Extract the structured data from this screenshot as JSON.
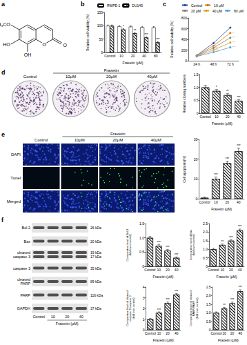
{
  "panel_letters": [
    "a",
    "b",
    "c",
    "d",
    "e",
    "f"
  ],
  "panels": {
    "a": {
      "methoxy": "H₃CO",
      "hydroxy7": "HO",
      "hydroxy8": "OH",
      "ring_oxygen": "O",
      "carbonyl_oxygen": "O"
    },
    "d": {
      "control": "Control",
      "treatment": "Fraxetin",
      "doses": [
        "10μM",
        "20μM",
        "40μM"
      ]
    },
    "e": {
      "control": "Control",
      "treatment": "Fraxetin",
      "doses": [
        "10μM",
        "20μM",
        "40μM"
      ],
      "rows": [
        "DAPI",
        "Tunel",
        "Merged"
      ]
    },
    "f": {
      "blots": [
        {
          "name": "Bcl-2",
          "kda": [
            "26 kDa"
          ]
        },
        {
          "name": "Bax",
          "kda": [
            "20 kDa"
          ]
        },
        {
          "name": "cleaved\ncaspase 3",
          "kda": [
            "19 kDa",
            "17 kDa"
          ]
        },
        {
          "name": "caspase 3",
          "kda": [
            "35 kDa"
          ]
        },
        {
          "name": "cleaved\nPARP",
          "kda": [
            "89 kDa"
          ]
        },
        {
          "name": "PARP",
          "kda": [
            "116 kDa"
          ]
        },
        {
          "name": "GAPDH",
          "kda": [
            "37 kDa"
          ]
        }
      ],
      "lanes": [
        "Control",
        "10",
        "20",
        "40"
      ],
      "xlabel": "Fraxetin (μM)"
    }
  },
  "chart_data": [
    {
      "type": "bar",
      "categories": [
        "Control",
        "10",
        "20",
        "40",
        "80"
      ],
      "xlabel": "Fraxetin (μM)",
      "ylabel": "Relative cell viability (%)",
      "ylim": [
        0,
        150
      ],
      "yticks": [
        0,
        50,
        100,
        150
      ],
      "grid": false,
      "legend": "top",
      "series": [
        {
          "name": "RWPE-1",
          "color": "#ffffff",
          "values": [
            100,
            98,
            97,
            95,
            94
          ],
          "errors": [
            3,
            3,
            3,
            3,
            3
          ],
          "significance": [
            null,
            null,
            null,
            null,
            null
          ]
        },
        {
          "name": "DU145",
          "color": "#ffffff",
          "values": [
            100,
            86,
            72,
            56,
            38
          ],
          "errors": [
            3,
            3,
            3,
            3,
            3
          ],
          "significance": [
            null,
            "*",
            "**",
            "***",
            "***"
          ]
        }
      ]
    },
    {
      "type": "line",
      "categories": [
        "24 h",
        "48 h",
        "72 h"
      ],
      "ylabel": "Relative cell viability (%)",
      "ylim": [
        0,
        800
      ],
      "yticks": [
        0,
        200,
        400,
        600,
        800
      ],
      "grid": false,
      "legend": "top",
      "marker": "circle",
      "series": [
        {
          "name": "Control",
          "color": "#1f4e9c",
          "values": [
            100,
            330,
            620
          ],
          "significance": [
            null,
            null,
            null
          ]
        },
        {
          "name": "10 μM",
          "color": "#e46c0a",
          "values": [
            95,
            280,
            520
          ],
          "significance": [
            null,
            "*",
            "**"
          ]
        },
        {
          "name": "20 μM",
          "color": "#7f7f7f",
          "values": [
            90,
            240,
            430
          ],
          "significance": [
            null,
            "**",
            "***"
          ]
        },
        {
          "name": "40 μM",
          "color": "#d4a017",
          "values": [
            85,
            200,
            340
          ],
          "significance": [
            "*",
            "***",
            "***"
          ]
        },
        {
          "name": "80 μM",
          "color": "#5b9bd5",
          "values": [
            80,
            160,
            250
          ],
          "significance": [
            "**",
            "***",
            "***"
          ]
        }
      ]
    },
    {
      "type": "bar",
      "categories": [
        "Control",
        "10",
        "20",
        "40"
      ],
      "xlabel": "Fraxetin (μM)",
      "ylabel": "Relative cloning numbers",
      "ylim": [
        0,
        1.5
      ],
      "yticks": [
        0,
        0.5,
        {
          "value": 1,
          "label": "1.0"
        },
        1.5
      ],
      "grid": false,
      "color": "#ffffff",
      "values": [
        1,
        0.86,
        0.7,
        0.48
      ],
      "errors": [
        0.08,
        0.06,
        0.06,
        0.05
      ],
      "significance": [
        null,
        "*",
        "**",
        "***"
      ]
    },
    {
      "type": "bar",
      "categories": [
        "Control",
        "10",
        "20",
        "40"
      ],
      "xlabel": "Fraxetin (μM)",
      "ylabel": "Cell apoptosis(%)",
      "ylim": [
        0,
        30
      ],
      "yticks": [
        0,
        10,
        20,
        30
      ],
      "grid": false,
      "color": "#ffffff",
      "values": [
        0.5,
        10,
        18,
        24
      ],
      "errors": [
        0.3,
        1,
        1,
        1.5
      ],
      "significance": [
        null,
        "***",
        "***",
        "***"
      ]
    },
    {
      "type": "bar",
      "categories": [
        "Control",
        "10",
        "20",
        "40"
      ],
      "xlabel": "Fraxetin (μM)",
      "ylabel": "Comparative level of Bcl-2\n(fold over control)",
      "ylim": [
        0,
        1.5
      ],
      "yticks": [
        0,
        0.5,
        {
          "value": 1,
          "label": "1.0"
        },
        1.5
      ],
      "grid": false,
      "color": "#ffffff",
      "values": [
        1,
        0.72,
        0.55,
        0.3
      ],
      "errors": [
        0.05,
        0.05,
        0.04,
        0.03
      ],
      "significance": [
        null,
        "***",
        "***",
        "***"
      ]
    },
    {
      "type": "bar",
      "categories": [
        "Control",
        "10",
        "20",
        "40"
      ],
      "xlabel": "Fraxetin (μM)",
      "ylabel": "Comparative level of Bax\n(fold over control)",
      "ylim": [
        0,
        2.5
      ],
      "yticks": [
        0,
        0.5,
        {
          "value": 1,
          "label": "1.0"
        },
        1.5,
        {
          "value": 2,
          "label": "2.0"
        },
        2.5
      ],
      "grid": false,
      "color": "#ffffff",
      "values": [
        1,
        1.25,
        1.5,
        2.1
      ],
      "errors": [
        0.05,
        0.06,
        0.07,
        0.08
      ],
      "significance": [
        null,
        "**",
        "***",
        "***"
      ]
    },
    {
      "type": "bar",
      "categories": [
        "Control",
        "10",
        "20",
        "40"
      ],
      "xlabel": "Fraxetin (μM)",
      "ylabel": "Comparative level of cleaved\ncaspase 3/caspase 3\n(fold over control)",
      "ylim": [
        0,
        4
      ],
      "yticks": [
        0,
        1,
        2,
        3,
        4
      ],
      "grid": false,
      "color": "#ffffff",
      "values": [
        1,
        1.6,
        2.5,
        3.3
      ],
      "errors": [
        0.06,
        0.08,
        0.1,
        0.1
      ],
      "significance": [
        null,
        "***",
        "***",
        "***"
      ]
    },
    {
      "type": "bar",
      "categories": [
        "Control",
        "10",
        "20",
        "40"
      ],
      "xlabel": "Fraxetin (μM)",
      "ylabel": "Comparative level of cleaved\nPARP/PARP\n(fold over control)",
      "ylim": [
        0,
        2.5
      ],
      "yticks": [
        0,
        0.5,
        {
          "value": 1,
          "label": "1.0"
        },
        1.5,
        {
          "value": 2,
          "label": "2.0"
        },
        2.5
      ],
      "grid": false,
      "color": "#ffffff",
      "values": [
        1,
        1.25,
        1.55,
        2.25
      ],
      "errors": [
        0.05,
        0.06,
        0.07,
        0.09
      ],
      "significance": [
        null,
        "**",
        "***",
        "***"
      ]
    }
  ]
}
